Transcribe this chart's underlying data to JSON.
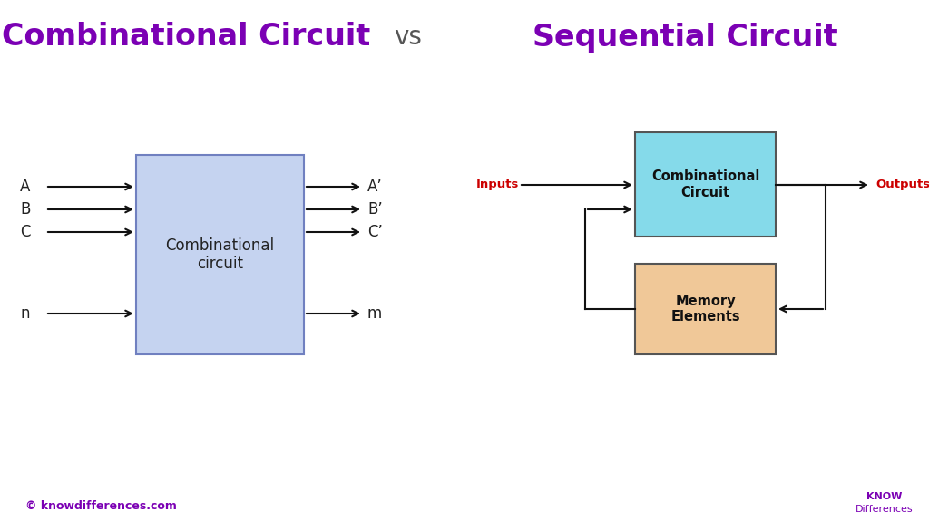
{
  "title_left": "Combinational Circuit",
  "title_vs": "vs",
  "title_right": "Sequential Circuit",
  "title_color": "#7B00B4",
  "title_vs_color": "#555555",
  "bg_color": "#FFFFFF",
  "combo_box_label": "Combinational\ncircuit",
  "combo_box_facecolor": "#C5D3F0",
  "combo_box_edgecolor": "#7080C0",
  "inputs_left": [
    "A",
    "B",
    "C",
    "n"
  ],
  "outputs_left": [
    "A’",
    "B’",
    "C’",
    "m"
  ],
  "seq_comb_box_label": "Combinational\nCircuit",
  "seq_comb_box_facecolor": "#85DAEA",
  "seq_comb_box_edgecolor": "#555555",
  "seq_mem_box_label": "Memory\nElements",
  "seq_mem_box_facecolor": "#F0C898",
  "seq_mem_box_edgecolor": "#555555",
  "inputs_label": "Inputs",
  "outputs_label": "Outputs",
  "inputs_color": "#CC0000",
  "outputs_color": "#CC0000",
  "copyright_text": "© knowdifferences.com",
  "copyright_color": "#7B00B4",
  "logo_know": "KNOW",
  "logo_diff": "Differences",
  "logo_color": "#7B00B4",
  "arrow_color": "#111111",
  "line_color": "#111111"
}
